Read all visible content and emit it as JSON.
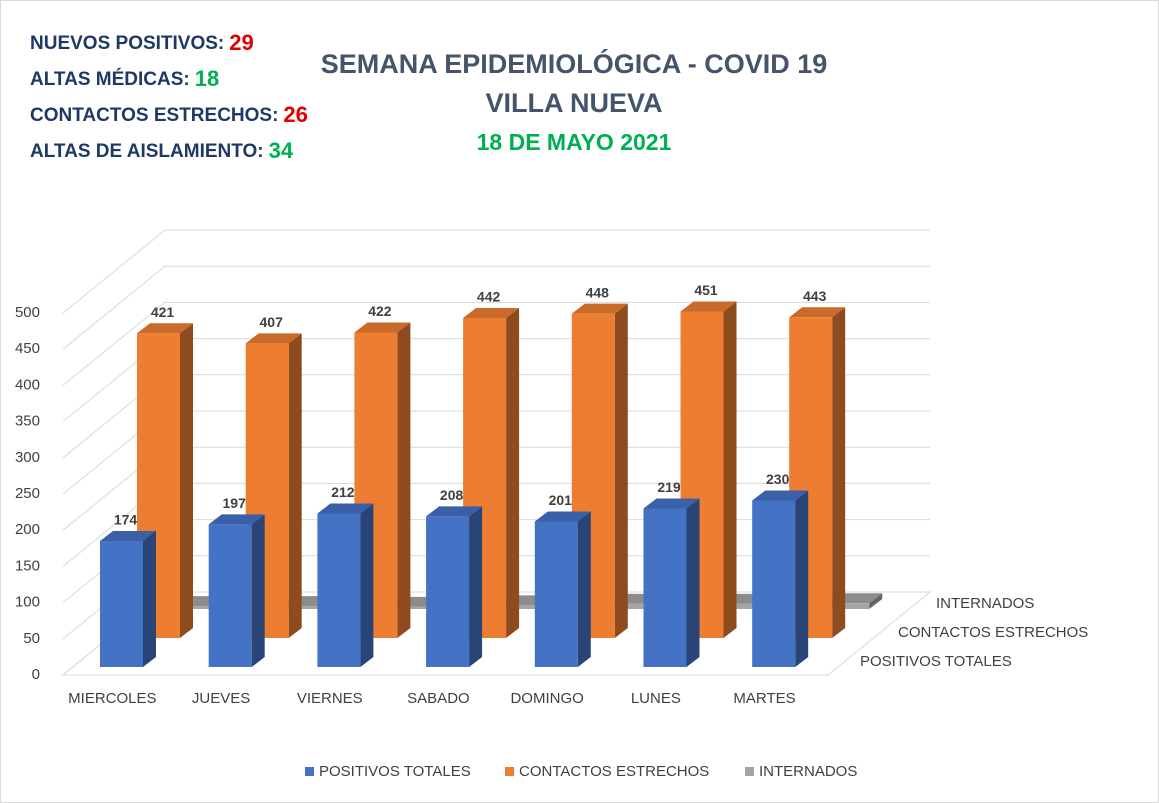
{
  "header": {
    "stats": [
      {
        "label": "NUEVOS POSITIVOS:",
        "value": 29
      },
      {
        "label": "ALTAS MÉDICAS:",
        "value": 18
      },
      {
        "label": "CONTACTOS ESTRECHOS:",
        "value": 26
      },
      {
        "label": "ALTAS DE AISLAMIENTO:",
        "value": 34
      }
    ]
  },
  "chart_data": {
    "type": "bar3d",
    "title": "SEMANA EPIDEMIOLÓGICA - COVID 19",
    "subtitle": "VILLA NUEVA",
    "date": "18 DE MAYO 2021",
    "categories": [
      "MIERCOLES",
      "JUEVES",
      "VIERNES",
      "SABADO",
      "DOMINGO",
      "LUNES",
      "MARTES"
    ],
    "series": [
      {
        "name": "POSITIVOS TOTALES",
        "color": "#4472c4",
        "values": [
          174,
          197,
          212,
          208,
          201,
          219,
          230
        ]
      },
      {
        "name": "CONTACTOS ESTRECHOS",
        "color": "#ed7d31",
        "values": [
          421,
          407,
          422,
          442,
          448,
          451,
          443
        ]
      },
      {
        "name": "INTERNADOS",
        "color": "#a5a5a5",
        "values": [
          4,
          4,
          3,
          5,
          7,
          7,
          8
        ]
      }
    ],
    "ylim": [
      0,
      500
    ],
    "yticks": [
      0,
      50,
      100,
      150,
      200,
      250,
      300,
      350,
      400,
      450,
      500
    ],
    "grid": true,
    "legend": "bottom"
  }
}
